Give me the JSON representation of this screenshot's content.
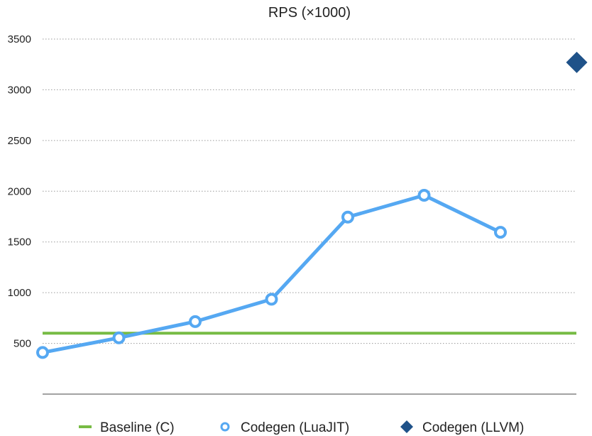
{
  "chart_data": {
    "type": "line",
    "title": "RPS (×1000)",
    "xlabel": "",
    "ylabel": "",
    "ylim": [
      0,
      3500
    ],
    "yticks": [
      500,
      1000,
      1500,
      2000,
      2500,
      3000,
      3500
    ],
    "x": [
      1,
      2,
      3,
      4,
      5,
      6,
      7,
      8
    ],
    "grid": true,
    "legend_position": "bottom",
    "series": [
      {
        "name": "Baseline (C)",
        "kind": "hline",
        "color": "#77bb44",
        "value": 600
      },
      {
        "name": "Codegen (LuaJIT)",
        "kind": "line",
        "color": "#55a8f2",
        "marker": "circle",
        "x": [
          1,
          2,
          3,
          4,
          5,
          6,
          7
        ],
        "values": [
          410,
          555,
          715,
          935,
          1745,
          1960,
          1595
        ]
      },
      {
        "name": "Codegen (LLVM)",
        "kind": "point",
        "color": "#1f5289",
        "marker": "diamond",
        "x": [
          8
        ],
        "values": [
          3270
        ]
      }
    ]
  }
}
